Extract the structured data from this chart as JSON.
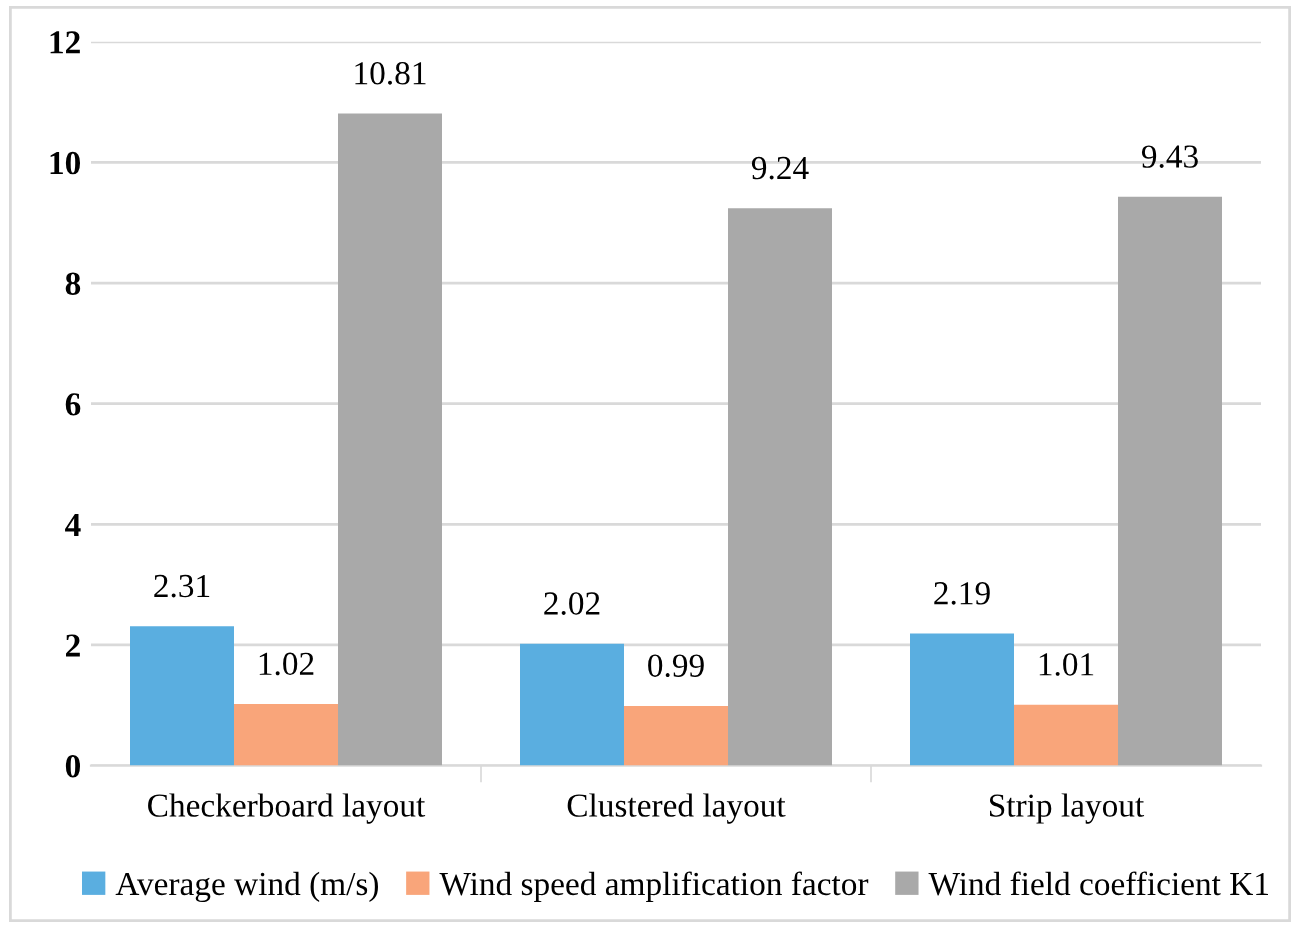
{
  "chart_data": {
    "type": "bar",
    "categories": [
      "Checkerboard layout",
      "Clustered layout",
      "Strip layout"
    ],
    "series": [
      {
        "name": "Average wind (m/s)",
        "color": "#5aaee0",
        "values": [
          2.31,
          2.02,
          2.19
        ]
      },
      {
        "name": "Wind speed amplification factor",
        "color": "#f9a57a",
        "values": [
          1.02,
          0.99,
          1.01
        ]
      },
      {
        "name": "Wind field coefficient K1",
        "color": "#a9a9a9",
        "values": [
          10.81,
          9.24,
          9.43
        ]
      }
    ],
    "ylim": [
      0,
      12
    ],
    "yticks": [
      0,
      2,
      4,
      6,
      8,
      10,
      12
    ],
    "grid": "y",
    "legend": "bottom",
    "data_labels": true
  }
}
